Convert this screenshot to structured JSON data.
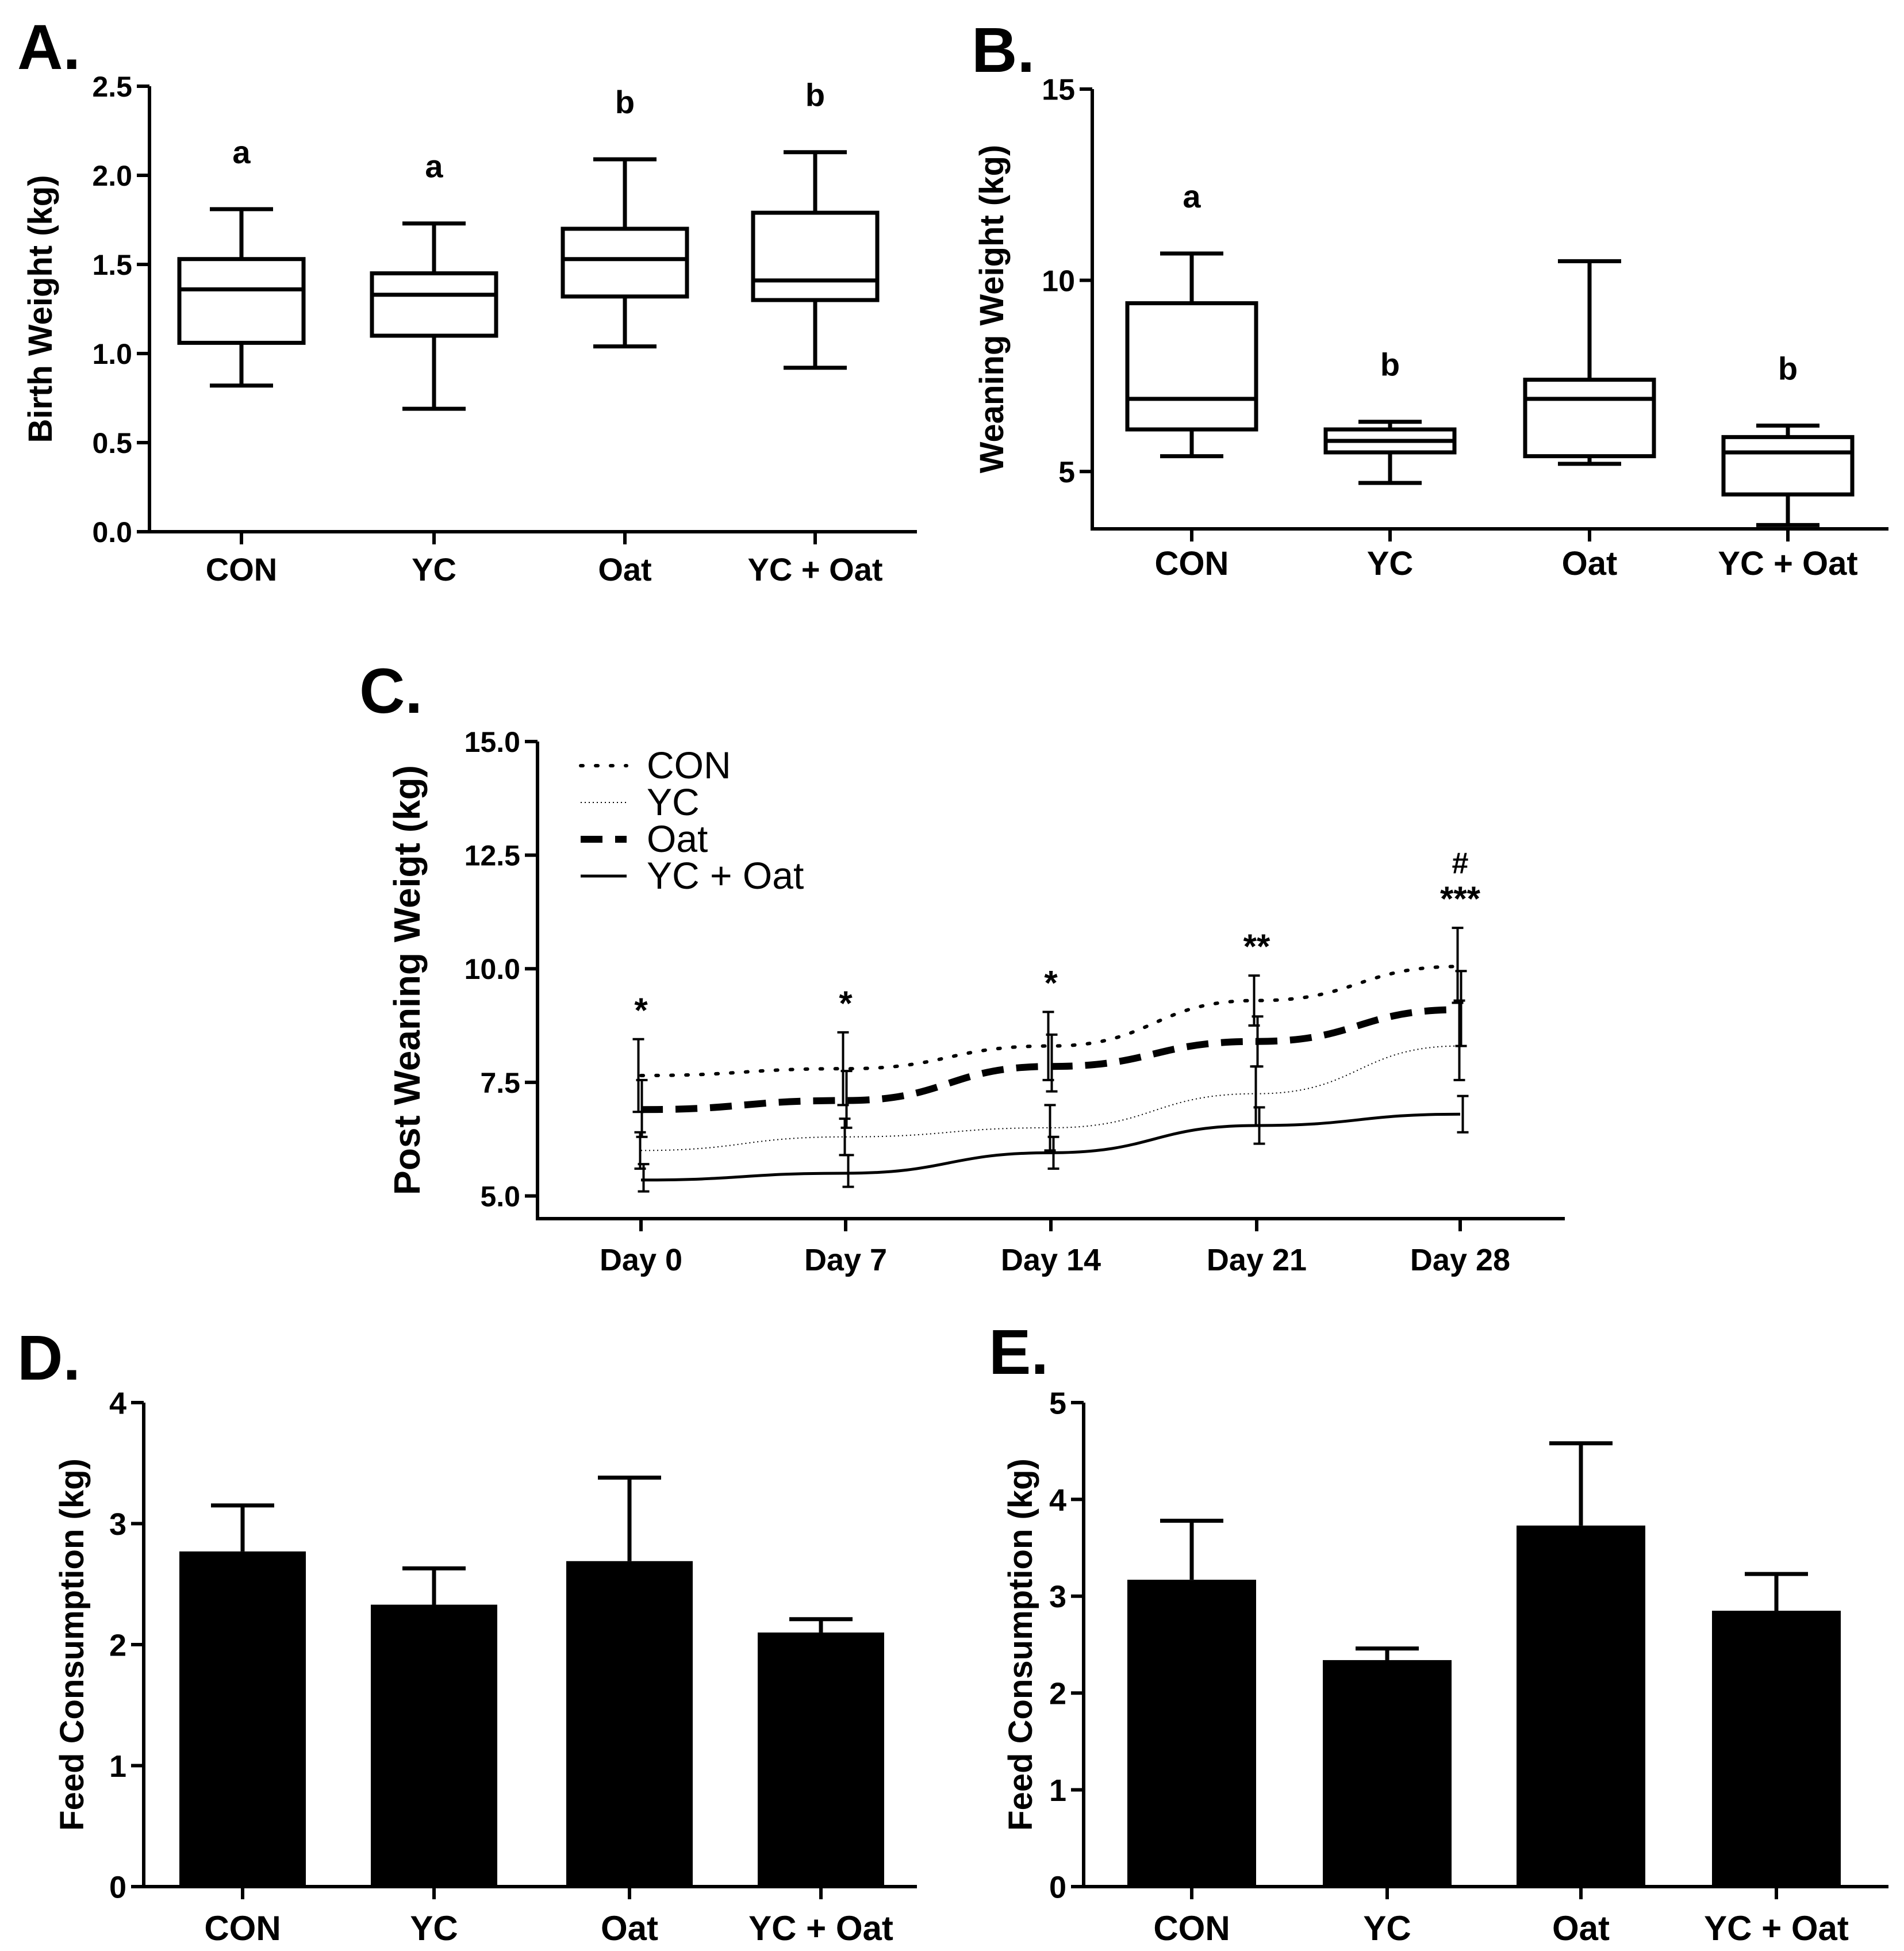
{
  "chart_data": [
    {
      "panel": "A.",
      "type": "box",
      "ylabel": "Birth Weight (kg)",
      "ylim": [
        0,
        2.5
      ],
      "yticks": [
        "0.0",
        "0.5",
        "1.0",
        "1.5",
        "2.0",
        "2.5"
      ],
      "categories": [
        "CON",
        "YC",
        "Oat",
        "YC + Oat"
      ],
      "boxes": [
        {
          "min": 0.82,
          "q1": 1.06,
          "median": 1.36,
          "q3": 1.53,
          "max": 1.81,
          "letter": "a"
        },
        {
          "min": 0.69,
          "q1": 1.1,
          "median": 1.33,
          "q3": 1.45,
          "max": 1.73,
          "letter": "a"
        },
        {
          "min": 1.04,
          "q1": 1.32,
          "median": 1.53,
          "q3": 1.7,
          "max": 2.09,
          "letter": "b"
        },
        {
          "min": 0.92,
          "q1": 1.3,
          "median": 1.41,
          "q3": 1.79,
          "max": 2.13,
          "letter": "b"
        }
      ]
    },
    {
      "panel": "B.",
      "type": "box",
      "ylabel": "Weaning Weight (kg)",
      "ylim": [
        3.5,
        15
      ],
      "yticks": [
        "5",
        "10",
        "15"
      ],
      "categories": [
        "CON",
        "YC",
        "Oat",
        "YC + Oat"
      ],
      "boxes": [
        {
          "min": 5.4,
          "q1": 6.1,
          "median": 6.9,
          "q3": 9.4,
          "max": 10.7,
          "letter": "a"
        },
        {
          "min": 4.7,
          "q1": 5.5,
          "median": 5.8,
          "q3": 6.1,
          "max": 6.3,
          "letter": "b"
        },
        {
          "min": 5.2,
          "q1": 5.4,
          "median": 6.9,
          "q3": 7.4,
          "max": 10.5,
          "letter": ""
        },
        {
          "min": 3.6,
          "q1": 4.4,
          "median": 5.5,
          "q3": 5.9,
          "max": 6.2,
          "letter": "b"
        }
      ]
    },
    {
      "panel": "C.",
      "type": "line",
      "ylabel": "Post Weaning Weigt  (kg)",
      "ylim": [
        4.5,
        15
      ],
      "yticks": [
        "5.0",
        "7.5",
        "10.0",
        "12.5",
        "15.0"
      ],
      "x": [
        "Day 0",
        "Day 7",
        "Day 14",
        "Day 21",
        "Day 28"
      ],
      "series": [
        {
          "name": "CON",
          "values": [
            7.65,
            7.8,
            8.3,
            9.3,
            10.05
          ],
          "err_hi": [
            8.45,
            8.6,
            9.05,
            9.85,
            10.9
          ],
          "err_lo": [
            6.85,
            7.0,
            7.55,
            8.75,
            9.25
          ],
          "style": "dotted"
        },
        {
          "name": "YC",
          "values": [
            6.0,
            6.3,
            6.5,
            7.25,
            8.3
          ],
          "err_hi": [
            6.4,
            6.7,
            7.0,
            7.85,
            9.3
          ],
          "err_lo": [
            5.6,
            5.9,
            6.0,
            6.55,
            7.55
          ],
          "style": "fine"
        },
        {
          "name": "Oat",
          "values": [
            6.9,
            7.1,
            7.85,
            8.4,
            9.1
          ],
          "err_hi": [
            7.55,
            7.75,
            8.55,
            8.95,
            9.95
          ],
          "err_lo": [
            6.3,
            6.5,
            7.3,
            7.85,
            8.3
          ],
          "style": "dashed"
        },
        {
          "name": "YC + Oat",
          "values": [
            5.35,
            5.5,
            5.95,
            6.55,
            6.8
          ],
          "err_hi": [
            5.7,
            5.9,
            6.3,
            6.95,
            7.2
          ],
          "err_lo": [
            5.1,
            5.2,
            5.6,
            6.15,
            6.4
          ],
          "style": "solid"
        }
      ],
      "annotations": [
        "*",
        "*",
        "*",
        "**",
        "***"
      ],
      "annotation_extra": "#"
    },
    {
      "panel": "D.",
      "type": "bar",
      "ylabel": "Feed Consumption (kg)",
      "ylim": [
        0,
        4
      ],
      "yticks": [
        "0",
        "1",
        "2",
        "3",
        "4"
      ],
      "categories": [
        "CON",
        "YC",
        "Oat",
        "YC + Oat"
      ],
      "values": [
        2.77,
        2.33,
        2.69,
        2.1
      ],
      "errors": [
        0.38,
        0.3,
        0.69,
        0.11
      ]
    },
    {
      "panel": "E.",
      "type": "bar",
      "ylabel": "Feed Consumption (kg)",
      "ylim": [
        0,
        5
      ],
      "yticks": [
        "0",
        "1",
        "2",
        "3",
        "4",
        "5"
      ],
      "categories": [
        "CON",
        "YC",
        "Oat",
        "YC + Oat"
      ],
      "values": [
        3.17,
        2.34,
        3.73,
        2.85
      ],
      "errors": [
        0.61,
        0.12,
        0.85,
        0.38
      ]
    }
  ]
}
